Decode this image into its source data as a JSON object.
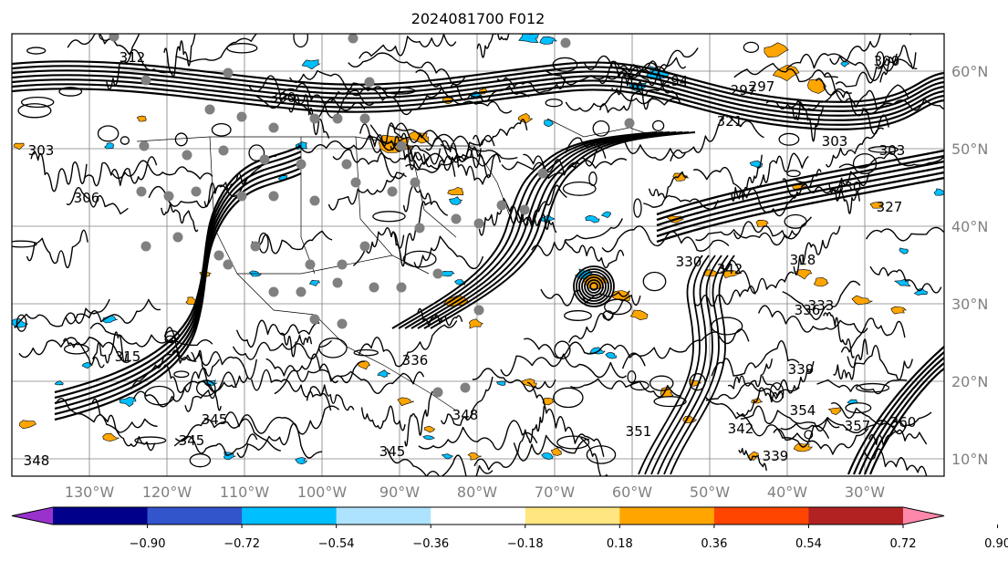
{
  "title": "2024081700 F012",
  "map": {
    "lat_labels": [
      "60°N",
      "50°N",
      "40°N",
      "30°N",
      "20°N",
      "10°N"
    ],
    "lon_labels": [
      "130°W",
      "120°W",
      "110°W",
      "100°W",
      "90°W",
      "80°W",
      "70°W",
      "60°W",
      "50°W",
      "40°W",
      "30°W"
    ],
    "contour_labels": [
      "312",
      "300",
      "303",
      "306",
      "297",
      "294",
      "297",
      "300",
      "303",
      "303",
      "315",
      "318",
      "321",
      "327",
      "330",
      "330",
      "333",
      "336",
      "339",
      "342",
      "342",
      "345",
      "345",
      "336",
      "348",
      "351",
      "354",
      "357",
      "360",
      "345",
      "348",
      "339"
    ],
    "colors": {
      "contour": "#000000",
      "grid": "#808080",
      "station_dot": "#808080",
      "positive_shading": "#ffa500",
      "negative_shading": "#00bfff"
    }
  },
  "colorbar": {
    "tick_labels": [
      "−0.90",
      "−0.72",
      "−0.54",
      "−0.36",
      "−0.18",
      "0.18",
      "0.36",
      "0.54",
      "0.72",
      "0.90"
    ],
    "colors": [
      "#9932cc",
      "#00008b",
      "#3355cc",
      "#00bfff",
      "#aee3ff",
      "#ffffff",
      "#ffe680",
      "#ffa500",
      "#ff4500",
      "#b22222",
      "#ff88aa"
    ]
  }
}
